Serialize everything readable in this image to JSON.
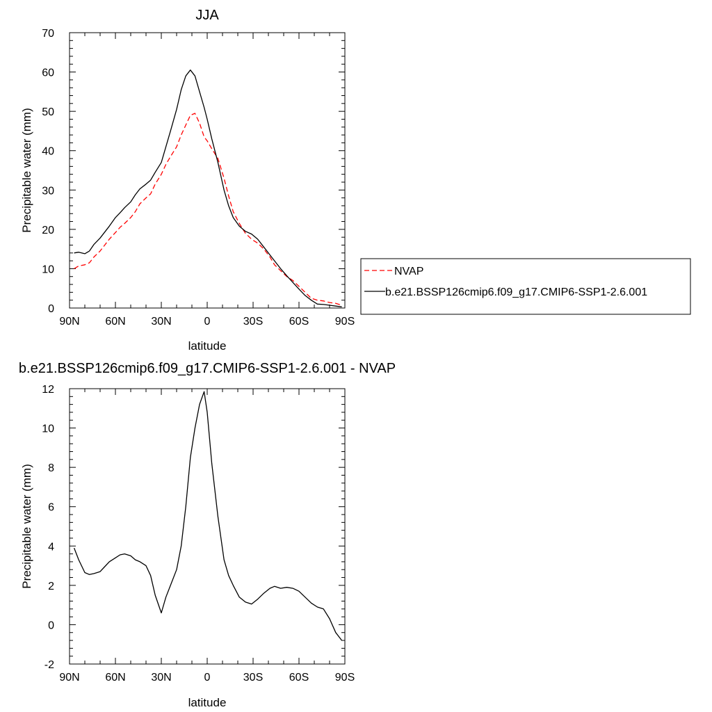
{
  "colors": {
    "nvap": "#ff0000",
    "model": "#000000",
    "axis": "#000000",
    "background": "#ffffff",
    "legend_border": "#000000"
  },
  "chart_data": [
    {
      "type": "line",
      "title": "JJA",
      "xlabel": "latitude",
      "ylabel": "Precipitable water (mm)",
      "xlim": [
        90,
        -90
      ],
      "ylim": [
        0,
        70
      ],
      "xticks": [
        {
          "value": 90,
          "label": "90N"
        },
        {
          "value": 60,
          "label": "60N"
        },
        {
          "value": 30,
          "label": "30N"
        },
        {
          "value": 0,
          "label": "0"
        },
        {
          "value": -30,
          "label": "30S"
        },
        {
          "value": -60,
          "label": "60S"
        },
        {
          "value": -90,
          "label": "90S"
        }
      ],
      "yticks": [
        0,
        10,
        20,
        30,
        40,
        50,
        60,
        70
      ],
      "yticklabels": [
        "0",
        "10",
        "20",
        "30",
        "40",
        "50",
        "60",
        "70"
      ],
      "grid": false,
      "legend_placement": "right, outside plot",
      "series": [
        {
          "name": "NVAP",
          "style": "dashed",
          "color": "#ff0000",
          "x": [
            87,
            84,
            80,
            77,
            74,
            70,
            67,
            64,
            60,
            57,
            54,
            50,
            47,
            44,
            40,
            37,
            34,
            30,
            27,
            24,
            20,
            17,
            14,
            11,
            8,
            5,
            2,
            0,
            -3,
            -7,
            -11,
            -14,
            -17,
            -21,
            -25,
            -29,
            -33,
            -37,
            -41,
            -44,
            -48,
            -52,
            -56,
            -60,
            -64,
            -68,
            -72,
            -76,
            -80,
            -84,
            -88
          ],
          "y": [
            10,
            10.7,
            11,
            11.5,
            13,
            14.5,
            16,
            17.5,
            19.2,
            20.5,
            21.5,
            23,
            24.5,
            26.5,
            28,
            29,
            31.5,
            34,
            36.5,
            38.5,
            41,
            44,
            46.5,
            49,
            49.5,
            47,
            43.5,
            42.5,
            40.5,
            38,
            33,
            28.5,
            24.5,
            21.5,
            19,
            17.5,
            16.5,
            15,
            13,
            11,
            9.5,
            8,
            7,
            5.5,
            4,
            2.5,
            2,
            1.8,
            1.4,
            1.2,
            0.7
          ]
        },
        {
          "name": "b.e21.BSSP126cmip6.f09_g17.CMIP6-SSP1-2.6.001",
          "style": "solid",
          "color": "#000000",
          "x": [
            87,
            84,
            80,
            77,
            74,
            70,
            67,
            64,
            60,
            57,
            54,
            50,
            47,
            44,
            40,
            37,
            34,
            30,
            27,
            24,
            20,
            17,
            14,
            11,
            8,
            5,
            2,
            0,
            -3,
            -7,
            -11,
            -14,
            -17,
            -21,
            -25,
            -29,
            -33,
            -37,
            -41,
            -44,
            -48,
            -52,
            -56,
            -60,
            -64,
            -68,
            -72,
            -76,
            -80,
            -84,
            -88
          ],
          "y": [
            14,
            14.2,
            13.8,
            14.5,
            16.2,
            17.8,
            19.3,
            20.8,
            23,
            24.2,
            25.5,
            27,
            28.8,
            30.3,
            31.5,
            32.5,
            34.5,
            37,
            41,
            45,
            50.5,
            55.5,
            59,
            60.5,
            59,
            55,
            51,
            48,
            43,
            37,
            30,
            26,
            23,
            20.8,
            19.5,
            18.8,
            17.5,
            15.5,
            13.5,
            12,
            10,
            8.2,
            6.5,
            4.8,
            3.2,
            2,
            1,
            0.9,
            0.7,
            0.5,
            0.3
          ]
        }
      ]
    },
    {
      "type": "line",
      "title": "b.e21.BSSP126cmip6.f09_g17.CMIP6-SSP1-2.6.001 - NVAP",
      "xlabel": "latitude",
      "ylabel": "Precipitable water (mm)",
      "xlim": [
        90,
        -90
      ],
      "ylim": [
        -2,
        12
      ],
      "xticks": [
        {
          "value": 90,
          "label": "90N"
        },
        {
          "value": 60,
          "label": "60N"
        },
        {
          "value": 30,
          "label": "30N"
        },
        {
          "value": 0,
          "label": "0"
        },
        {
          "value": -30,
          "label": "30S"
        },
        {
          "value": -60,
          "label": "60S"
        },
        {
          "value": -90,
          "label": "90S"
        }
      ],
      "yticks": [
        -2,
        0,
        2,
        4,
        6,
        8,
        10,
        12
      ],
      "yticklabels": [
        "-2",
        "0",
        "2",
        "4",
        "6",
        "8",
        "10",
        "12"
      ],
      "grid": false,
      "series": [
        {
          "style": "solid",
          "color": "#000000",
          "x": [
            87,
            84,
            80,
            77,
            74,
            70,
            67,
            64,
            60,
            57,
            54,
            50,
            47,
            44,
            40,
            37,
            34,
            30,
            27,
            24,
            20,
            17,
            14,
            11,
            8,
            5,
            2,
            0,
            -3,
            -7,
            -11,
            -14,
            -17,
            -21,
            -25,
            -29,
            -33,
            -37,
            -41,
            -44,
            -48,
            -52,
            -56,
            -60,
            -64,
            -68,
            -72,
            -76,
            -80,
            -84,
            -88
          ],
          "y": [
            3.9,
            3.3,
            2.65,
            2.55,
            2.6,
            2.7,
            2.95,
            3.2,
            3.4,
            3.55,
            3.6,
            3.5,
            3.3,
            3.2,
            3.0,
            2.5,
            1.5,
            0.6,
            1.4,
            2.0,
            2.8,
            4.0,
            6.0,
            8.5,
            10.0,
            11.2,
            11.85,
            10.8,
            8.2,
            5.5,
            3.3,
            2.5,
            2.0,
            1.4,
            1.15,
            1.05,
            1.3,
            1.6,
            1.85,
            1.95,
            1.85,
            1.9,
            1.85,
            1.7,
            1.4,
            1.1,
            0.9,
            0.8,
            0.3,
            -0.4,
            -0.8
          ]
        }
      ]
    }
  ]
}
